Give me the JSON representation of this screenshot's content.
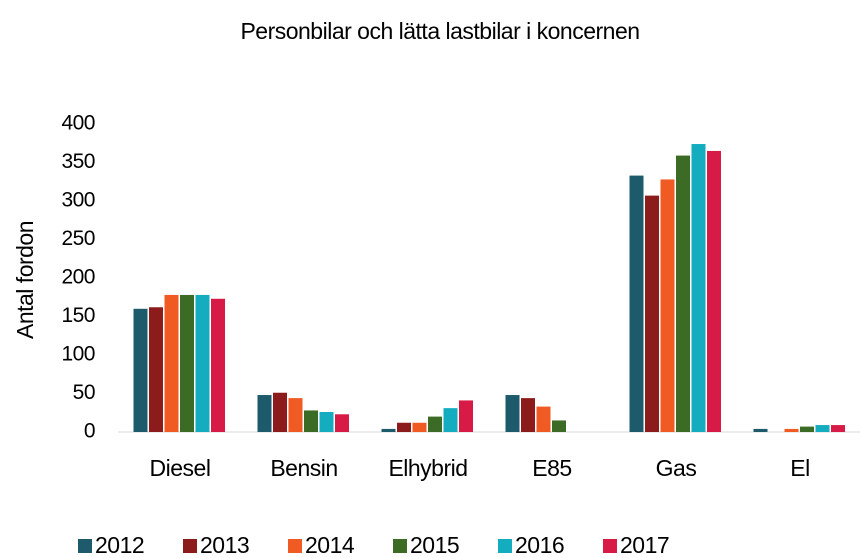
{
  "chart_data": {
    "type": "bar",
    "title": "Personbilar och lätta lastbilar i koncernen",
    "y_label": "Antal fordon",
    "categories": [
      "Diesel",
      "Bensin",
      "Elhybrid",
      "E85",
      "Gas",
      "El"
    ],
    "series": [
      {
        "name": "2012",
        "color": "#1d5a6c",
        "values": [
          160,
          48,
          4,
          48,
          333,
          4
        ]
      },
      {
        "name": "2013",
        "color": "#8c1c1c",
        "values": [
          162,
          51,
          12,
          44,
          307,
          0
        ]
      },
      {
        "name": "2014",
        "color": "#f05a23",
        "values": [
          178,
          44,
          12,
          33,
          328,
          4
        ]
      },
      {
        "name": "2015",
        "color": "#3b6b24",
        "values": [
          178,
          28,
          20,
          15,
          359,
          7
        ]
      },
      {
        "name": "2016",
        "color": "#14adbf",
        "values": [
          178,
          26,
          31,
          0,
          374,
          9
        ]
      },
      {
        "name": "2017",
        "color": "#d81b46",
        "values": [
          173,
          23,
          41,
          0,
          365,
          9
        ]
      }
    ],
    "ylim": [
      0,
      400
    ],
    "yticks": [
      0,
      50,
      100,
      150,
      200,
      250,
      300,
      350,
      400
    ],
    "grid": false
  }
}
